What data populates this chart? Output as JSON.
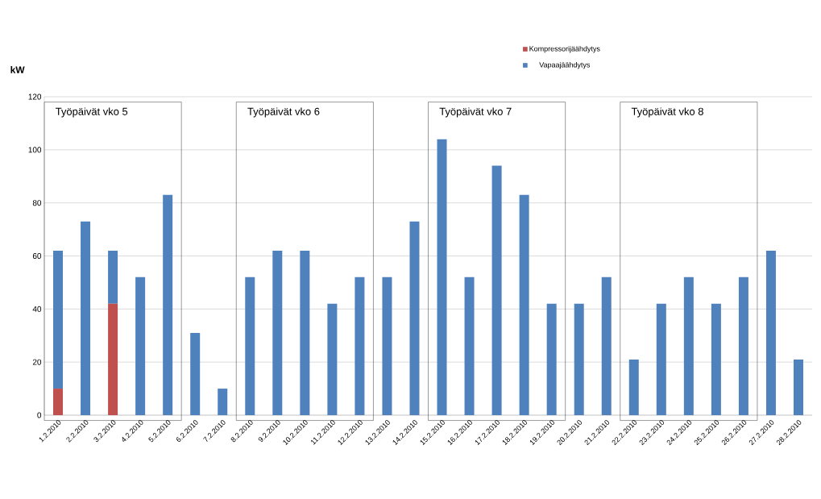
{
  "chart_data": {
    "type": "bar",
    "stacked": true,
    "ylabel": "kW",
    "categories": [
      "1.2.2010",
      "2.2.2010",
      "3.2.2010",
      "4.2.2010",
      "5.2.2010",
      "6.2.2010",
      "7.2.2010",
      "8.2.2010",
      "9.2.2010",
      "10.2.2010",
      "11.2.2010",
      "12.2.2010",
      "13.2.2010",
      "14.2.2010",
      "15.2.2010",
      "16.2.2010",
      "17.2.2010",
      "18.2.2010",
      "19.2.2010",
      "20.2.2010",
      "21.2.2010",
      "22.2.2010",
      "23.2.2010",
      "24.2.2010",
      "25.2.2010",
      "26.2.2010",
      "27.2.2010",
      "28.2.2010"
    ],
    "series": [
      {
        "name": "Kompressorijäähdytys",
        "color": "#c0504d",
        "values": [
          10,
          0,
          42,
          0,
          0,
          0,
          0,
          0,
          0,
          0,
          0,
          0,
          0,
          0,
          0,
          0,
          0,
          0,
          0,
          0,
          0,
          0,
          0,
          0,
          0,
          0,
          0,
          0
        ]
      },
      {
        "name": "Vapaajäähdytys",
        "color": "#4f81bd",
        "values": [
          52,
          73,
          20,
          52,
          83,
          31,
          10,
          52,
          62,
          62,
          42,
          52,
          52,
          73,
          104,
          52,
          94,
          83,
          42,
          42,
          52,
          21,
          42,
          52,
          42,
          52,
          62,
          21
        ]
      }
    ],
    "ylim": [
      0,
      120
    ],
    "yticks": [
      0,
      20,
      40,
      60,
      80,
      100,
      120
    ],
    "grid": "y",
    "legend": "top",
    "annotations": [
      "Työpäivät vko 5",
      "Työpäivät vko 6",
      "Työpäivät vko 7",
      "Työpäivät vko 8"
    ]
  }
}
